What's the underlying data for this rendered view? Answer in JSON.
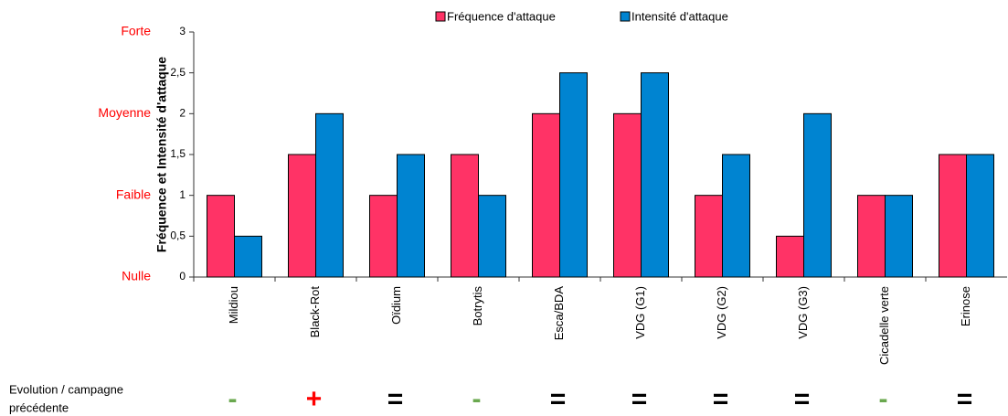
{
  "chart_data": {
    "type": "bar",
    "y_axis_label": "Fréquence et Intensité d'attaque",
    "categories": [
      "Mildiou",
      "Black-Rot",
      "Oïdium",
      "Botrytis",
      "Esca/BDA",
      "VDG (G1)",
      "VDG (G2)",
      "VDG (G3)",
      "Cicadelle verte",
      "Erinose"
    ],
    "series": [
      {
        "name": "Fréquence d'attaque",
        "color": "#ff3366",
        "values": [
          1,
          1.5,
          1,
          1.5,
          2,
          2,
          1,
          0.5,
          1,
          1.5
        ]
      },
      {
        "name": "Intensité d'attaque",
        "color": "#0084d1",
        "values": [
          0.5,
          2,
          1.5,
          1,
          2.5,
          2.5,
          1.5,
          2,
          1,
          1.5
        ]
      }
    ],
    "ylim": [
      0,
      3
    ],
    "yticks": [
      0,
      {
        "value": 0.5,
        "label": "0,5"
      },
      1,
      {
        "value": 1.5,
        "label": "1,5"
      },
      2,
      {
        "value": 2.5,
        "label": "2,5"
      },
      3
    ],
    "level_labels": [
      {
        "value": 3,
        "label": "Forte"
      },
      {
        "value": 2,
        "label": "Moyenne"
      },
      {
        "value": 1,
        "label": "Faible"
      },
      {
        "value": 0,
        "label": "Nulle"
      }
    ],
    "level_color": "#ff0000",
    "legend": "top",
    "evolution_label": [
      "Evolution / campagne",
      "précédente"
    ],
    "evolution": [
      "-",
      "+",
      "=",
      "-",
      "=",
      "=",
      "=",
      "=",
      "-",
      "="
    ],
    "evolution_colors": {
      "-": "#6aa84f",
      "+": "#ff0000",
      "=": "#000000"
    }
  }
}
